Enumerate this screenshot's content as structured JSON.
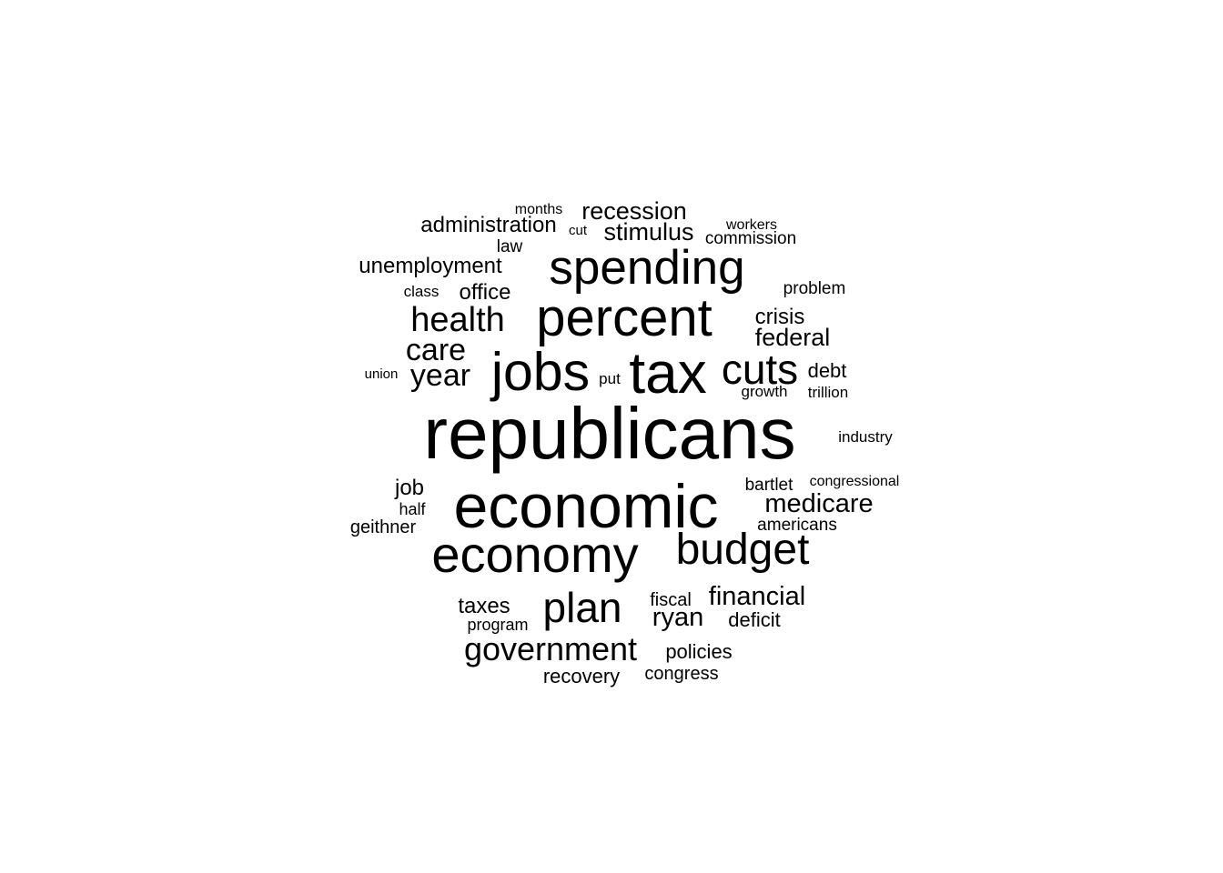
{
  "word_cloud": {
    "text_color": "#000000",
    "background_color": "#ffffff",
    "words": [
      {
        "text": "republicans"
      },
      {
        "text": "economic"
      },
      {
        "text": "tax"
      },
      {
        "text": "jobs"
      },
      {
        "text": "economy"
      },
      {
        "text": "percent"
      },
      {
        "text": "spending"
      },
      {
        "text": "budget"
      },
      {
        "text": "plan"
      },
      {
        "text": "cuts"
      },
      {
        "text": "health"
      },
      {
        "text": "government"
      },
      {
        "text": "care"
      },
      {
        "text": "year"
      },
      {
        "text": "medicare"
      },
      {
        "text": "financial"
      },
      {
        "text": "recession"
      },
      {
        "text": "ryan"
      },
      {
        "text": "federal"
      },
      {
        "text": "stimulus"
      },
      {
        "text": "administration"
      },
      {
        "text": "unemployment"
      },
      {
        "text": "taxes"
      },
      {
        "text": "crisis"
      },
      {
        "text": "office"
      },
      {
        "text": "job"
      },
      {
        "text": "recovery"
      },
      {
        "text": "policies"
      },
      {
        "text": "debt"
      },
      {
        "text": "deficit"
      },
      {
        "text": "fiscal"
      },
      {
        "text": "geithner"
      },
      {
        "text": "congress"
      },
      {
        "text": "americans"
      },
      {
        "text": "commission"
      },
      {
        "text": "problem"
      },
      {
        "text": "bartlet"
      },
      {
        "text": "program"
      },
      {
        "text": "industry"
      },
      {
        "text": "trillion"
      },
      {
        "text": "law"
      },
      {
        "text": "half"
      },
      {
        "text": "growth"
      },
      {
        "text": "class"
      },
      {
        "text": "months"
      },
      {
        "text": "workers"
      },
      {
        "text": "congressional"
      },
      {
        "text": "put"
      },
      {
        "text": "union"
      },
      {
        "text": "cut"
      }
    ]
  }
}
